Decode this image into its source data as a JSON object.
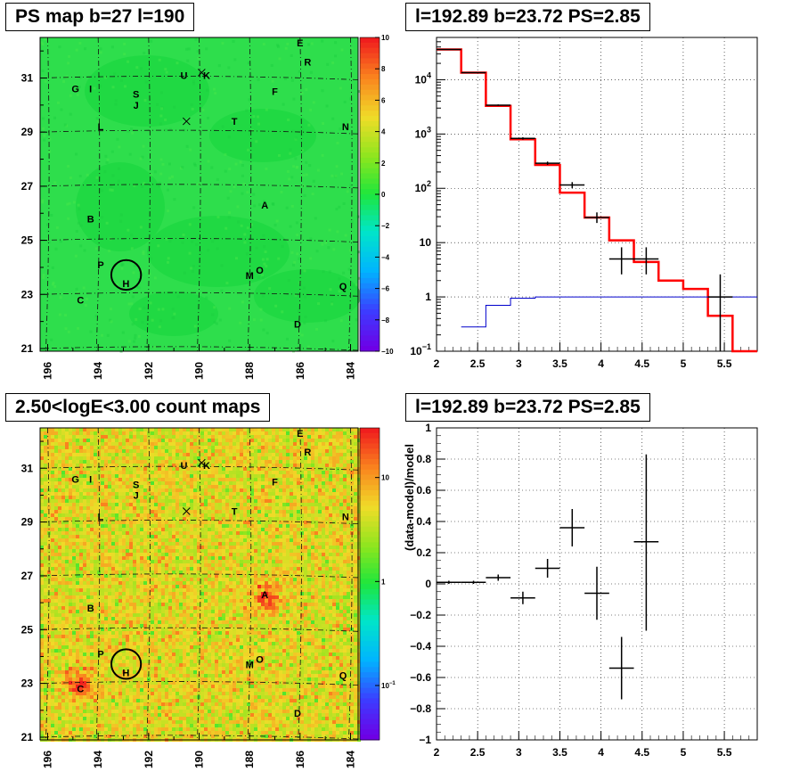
{
  "panels": {
    "map_top_title": "PS map b=27 l=190",
    "spec_top_title": "l=192.89 b=23.72 PS=2.85",
    "map_bottom_title": "2.50<logE<3.00 count maps",
    "spec_bottom_title": "l=192.89 b=23.72 PS=2.85"
  },
  "colors": {
    "data": "#000000",
    "model": "#ff0000",
    "background_model": "#0000cc",
    "ps_map_field": "#22dd44",
    "count_map_field": "#f0b838"
  },
  "chart_data": [
    {
      "type": "heatmap",
      "title": "PS map b=27 l=190",
      "x_ticks": [
        "196",
        "194",
        "192",
        "190",
        "188",
        "186",
        "184"
      ],
      "y_ticks": [
        "21",
        "23",
        "25",
        "27",
        "29",
        "31"
      ],
      "xlim": [
        196.3,
        183.7
      ],
      "ylim": [
        20.9,
        32.5
      ],
      "colorbar": {
        "scale": "linear",
        "range": [
          -10,
          10
        ],
        "ticks": [
          "10",
          "8",
          "6",
          "4",
          "2",
          "0",
          "−2",
          "−4",
          "−6",
          "−8",
          "−10"
        ]
      },
      "sources": [
        {
          "label": "E",
          "l": 186.0,
          "b": 32.3
        },
        {
          "label": "R",
          "l": 185.7,
          "b": 31.6
        },
        {
          "label": "U",
          "l": 190.6,
          "b": 31.1
        },
        {
          "label": "K",
          "l": 189.7,
          "b": 31.1
        },
        {
          "label": "G",
          "l": 194.9,
          "b": 30.6
        },
        {
          "label": "I",
          "l": 194.3,
          "b": 30.6
        },
        {
          "label": "S",
          "l": 192.5,
          "b": 30.4
        },
        {
          "label": "F",
          "l": 187.0,
          "b": 30.5
        },
        {
          "label": "J",
          "l": 192.5,
          "b": 30.0
        },
        {
          "label": "L",
          "l": 193.9,
          "b": 29.2
        },
        {
          "label": "T",
          "l": 188.6,
          "b": 29.4
        },
        {
          "label": "N",
          "l": 184.2,
          "b": 29.2
        },
        {
          "label": "A",
          "l": 187.4,
          "b": 26.3
        },
        {
          "label": "B",
          "l": 194.3,
          "b": 25.8
        },
        {
          "label": "P",
          "l": 193.9,
          "b": 24.1
        },
        {
          "label": "O",
          "l": 187.6,
          "b": 23.9
        },
        {
          "label": "M",
          "l": 188.0,
          "b": 23.7
        },
        {
          "label": "H",
          "l": 192.9,
          "b": 23.4
        },
        {
          "label": "Q",
          "l": 184.3,
          "b": 23.3
        },
        {
          "label": "C",
          "l": 194.7,
          "b": 22.8
        },
        {
          "label": "D",
          "l": 186.1,
          "b": 21.9
        }
      ],
      "crosses": [
        {
          "l": 189.9,
          "b": 31.2
        },
        {
          "l": 190.5,
          "b": 29.4
        }
      ],
      "circle": {
        "l": 192.89,
        "b": 23.72,
        "radius_deg": 0.55
      }
    },
    {
      "type": "line",
      "title": "l=192.89 b=23.72 PS=2.85",
      "xlabel": "",
      "ylabel": "",
      "x_ticks": [
        "2",
        "2.5",
        "3",
        "3.5",
        "4",
        "4.5",
        "5",
        "5.5"
      ],
      "xlim": [
        2,
        5.9
      ],
      "yscale": "log",
      "ylim": [
        0.1,
        60000
      ],
      "y_ticks": [
        "10^-1",
        "1",
        "10",
        "10^2",
        "10^3",
        "10^4"
      ],
      "grid": true,
      "series": [
        {
          "style": "step",
          "color": "#ff0000",
          "edges": [
            2,
            2.3,
            2.6,
            2.9,
            3.2,
            3.5,
            3.8,
            4.1,
            4.4,
            4.7,
            5.0,
            5.3,
            5.6,
            5.9
          ],
          "values": [
            36000,
            13500,
            3300,
            800,
            270,
            83,
            29,
            11,
            4.4,
            2.0,
            1.4,
            0.45,
            0.08
          ]
        },
        {
          "style": "step",
          "color": "#0000cc",
          "edges": [
            2.3,
            2.6,
            2.9,
            3.2,
            3.5,
            3.8,
            4.1,
            4.4,
            4.7,
            5.0,
            5.3,
            5.6,
            5.9
          ],
          "values": [
            0.28,
            0.7,
            0.95,
            1.0,
            1.0,
            1.0,
            1.0,
            1.0,
            1.0,
            1.0,
            1.0,
            1.0
          ]
        },
        {
          "style": "points",
          "color": "#000000",
          "points": [
            {
              "x": 2.15,
              "xerr": 0.15,
              "y": 36000,
              "ylo": 35500,
              "yhi": 36500
            },
            {
              "x": 2.45,
              "xerr": 0.15,
              "y": 13500,
              "ylo": 13300,
              "yhi": 13700
            },
            {
              "x": 2.75,
              "xerr": 0.15,
              "y": 3400,
              "ylo": 3300,
              "yhi": 3500
            },
            {
              "x": 3.05,
              "xerr": 0.15,
              "y": 830,
              "ylo": 790,
              "yhi": 870
            },
            {
              "x": 3.35,
              "xerr": 0.15,
              "y": 290,
              "ylo": 270,
              "yhi": 310
            },
            {
              "x": 3.65,
              "xerr": 0.15,
              "y": 115,
              "ylo": 100,
              "yhi": 130
            },
            {
              "x": 3.95,
              "xerr": 0.15,
              "y": 29,
              "ylo": 23,
              "yhi": 36
            },
            {
              "x": 4.25,
              "xerr": 0.15,
              "y": 5.0,
              "ylo": 2.6,
              "yhi": 8.2
            },
            {
              "x": 4.55,
              "xerr": 0.15,
              "y": 5.0,
              "ylo": 2.6,
              "yhi": 8.2
            },
            {
              "x": 5.45,
              "xerr": 0.15,
              "y": 1.0,
              "ylo": 0.1,
              "yhi": 2.6
            }
          ]
        }
      ]
    },
    {
      "type": "heatmap",
      "title": "2.50<logE<3.00 count maps",
      "x_ticks": [
        "196",
        "194",
        "192",
        "190",
        "188",
        "186",
        "184"
      ],
      "y_ticks": [
        "21",
        "23",
        "25",
        "27",
        "29",
        "31"
      ],
      "xlim": [
        196.3,
        183.7
      ],
      "ylim": [
        20.9,
        32.5
      ],
      "colorbar": {
        "scale": "log",
        "range": [
          0.03,
          30
        ],
        "ticks": [
          "10",
          "1",
          "10^-1"
        ]
      },
      "hotspots": [
        {
          "label": "A",
          "l": 187.4,
          "b": 26.3
        },
        {
          "label": "C",
          "l": 194.8,
          "b": 23.0
        }
      ],
      "crosses": [
        {
          "l": 189.9,
          "b": 31.2
        },
        {
          "l": 190.5,
          "b": 29.4
        }
      ],
      "circle": {
        "l": 192.89,
        "b": 23.72,
        "radius_deg": 0.55
      }
    },
    {
      "type": "scatter",
      "title": "l=192.89 b=23.72 PS=2.85",
      "xlabel": "",
      "ylabel": "(data-model)/model",
      "x_ticks": [
        "2",
        "2.5",
        "3",
        "3.5",
        "4",
        "4.5",
        "5",
        "5.5"
      ],
      "xlim": [
        2,
        5.9
      ],
      "ylim": [
        -1,
        1
      ],
      "y_ticks": [
        "1",
        "0.8",
        "0.6",
        "0.4",
        "0.2",
        "0",
        "−0.2",
        "−0.4",
        "−0.6",
        "−0.8",
        "−1"
      ],
      "grid": true,
      "points": [
        {
          "x": 2.15,
          "xerr": 0.15,
          "y": 0.01,
          "ylo": 0.0,
          "yhi": 0.02
        },
        {
          "x": 2.45,
          "xerr": 0.15,
          "y": 0.01,
          "ylo": 0.0,
          "yhi": 0.02
        },
        {
          "x": 2.75,
          "xerr": 0.15,
          "y": 0.04,
          "ylo": 0.02,
          "yhi": 0.06
        },
        {
          "x": 3.05,
          "xerr": 0.15,
          "y": -0.09,
          "ylo": -0.13,
          "yhi": -0.05
        },
        {
          "x": 3.35,
          "xerr": 0.15,
          "y": 0.1,
          "ylo": 0.04,
          "yhi": 0.16
        },
        {
          "x": 3.65,
          "xerr": 0.15,
          "y": 0.36,
          "ylo": 0.24,
          "yhi": 0.48
        },
        {
          "x": 3.95,
          "xerr": 0.15,
          "y": -0.06,
          "ylo": -0.23,
          "yhi": 0.11
        },
        {
          "x": 4.25,
          "xerr": 0.15,
          "y": -0.54,
          "ylo": -0.74,
          "yhi": -0.34
        },
        {
          "x": 4.55,
          "xerr": 0.15,
          "y": 0.27,
          "ylo": -0.3,
          "yhi": 0.83
        }
      ]
    }
  ]
}
